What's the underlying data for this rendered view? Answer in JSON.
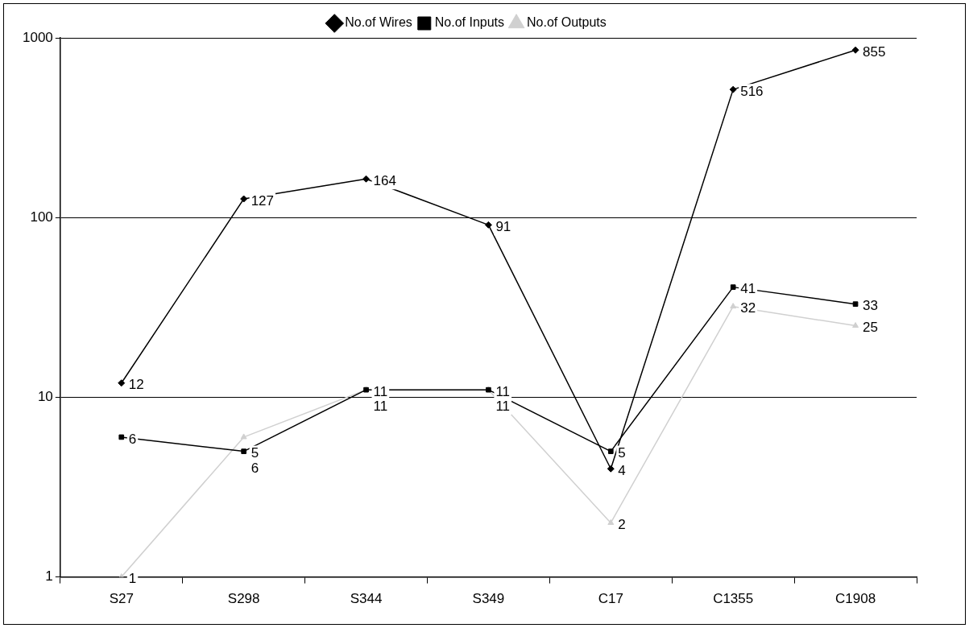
{
  "chart_data": {
    "type": "line",
    "categories": [
      "S27",
      "S298",
      "S344",
      "S349",
      "C17",
      "C1355",
      "C1908"
    ],
    "series": [
      {
        "name": "No.of Wires",
        "color": "#000000",
        "marker": "diamond",
        "values": [
          12,
          127,
          164,
          91,
          4,
          516,
          855
        ]
      },
      {
        "name": "No.of Inputs",
        "color": "#000000",
        "marker": "square",
        "values": [
          6,
          5,
          11,
          11,
          5,
          41,
          33
        ]
      },
      {
        "name": "No.of Outputs",
        "color": "#d0d0d0",
        "marker": "triangle",
        "values": [
          1,
          6,
          11,
          11,
          2,
          32,
          25
        ]
      }
    ],
    "log": "y",
    "ylim": [
      1,
      1000
    ],
    "yticks": [
      1,
      10,
      100,
      1000
    ],
    "grid": "y",
    "legend": "top",
    "data_labels": true,
    "line_style": "solid"
  }
}
